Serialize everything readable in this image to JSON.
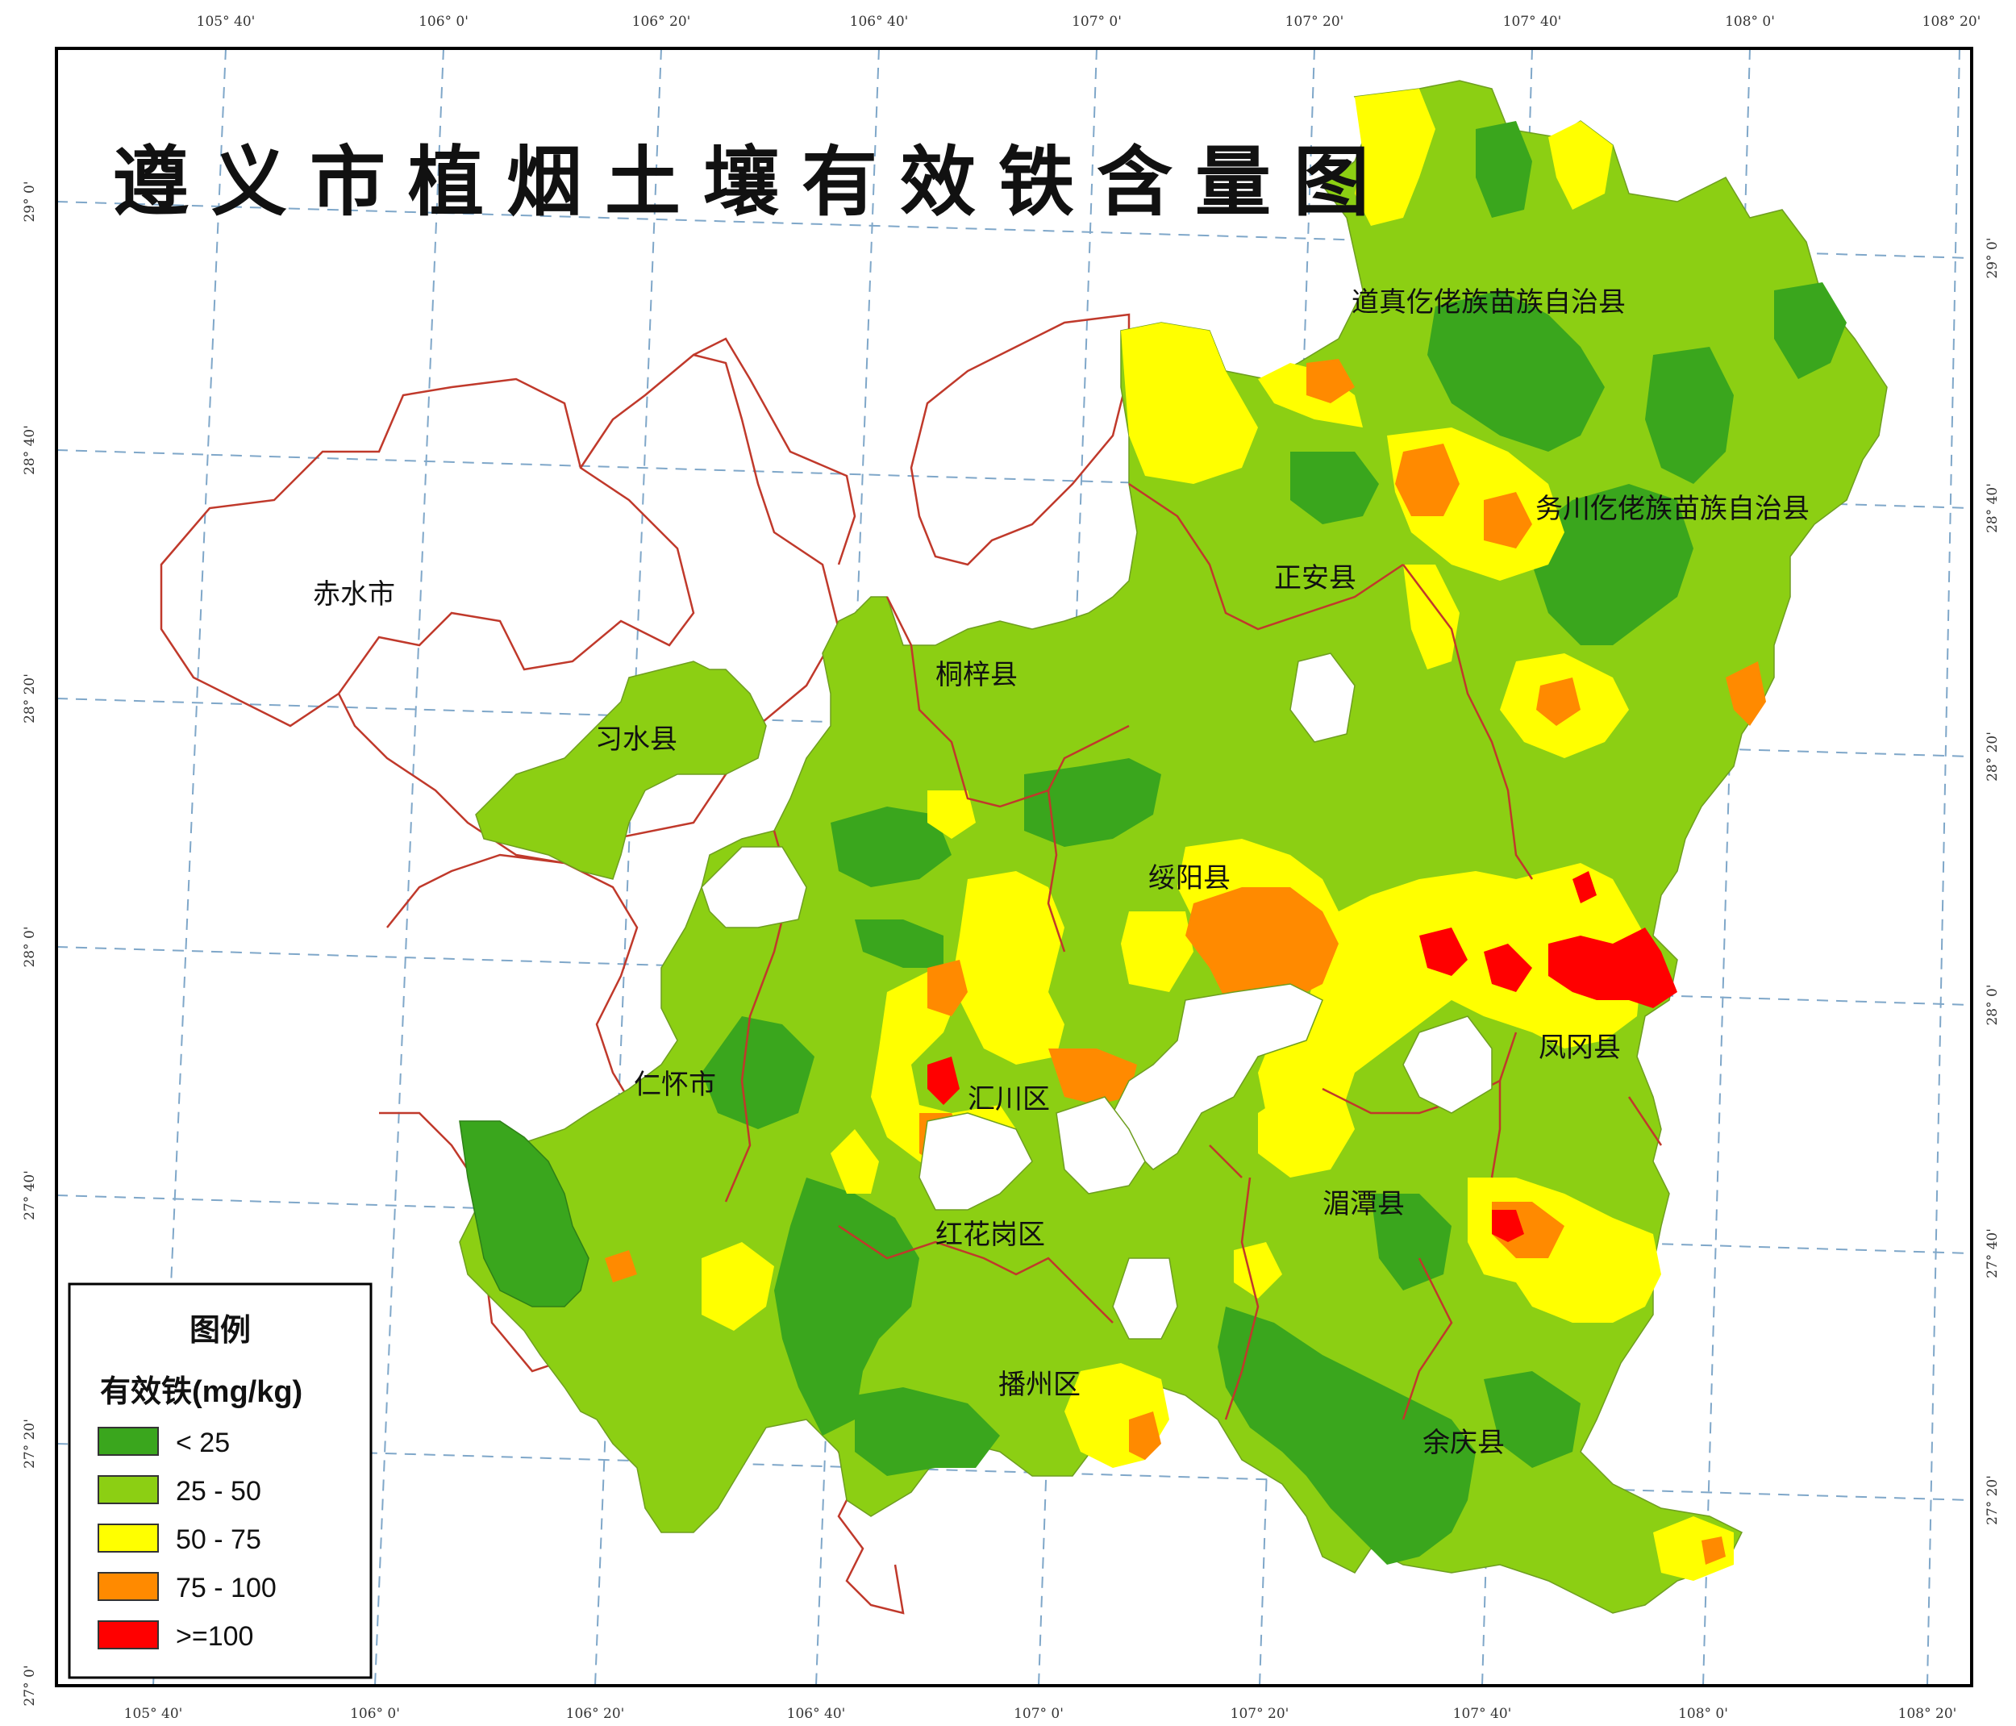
{
  "title": "遵义市植烟土壤有效铁含量图",
  "colors": {
    "c1": "#3aa61d",
    "c2": "#8ccf13",
    "c3": "#ffff00",
    "c4": "#ff8a00",
    "c5": "#ff0000",
    "boundary": "#c0392b",
    "grid": "#7fa7c9",
    "frame": "#000000"
  },
  "ticks": {
    "top": [
      "105° 40'",
      "106° 0'",
      "106° 20'",
      "106° 40'",
      "107° 0'",
      "107° 20'",
      "107° 40'",
      "108° 0'",
      "108° 20'"
    ],
    "bottom": [
      "105° 40'",
      "106° 0'",
      "106° 20'",
      "106° 40'",
      "107° 0'",
      "107° 20'",
      "107° 40'",
      "108° 0'",
      "108° 20'"
    ],
    "left": [
      "29° 0'",
      "28° 40'",
      "28° 20'",
      "28° 0'",
      "27° 40'",
      "27° 20'",
      "27° 0'"
    ],
    "right": [
      "29° 0'",
      "28° 40'",
      "28° 20'",
      "28° 0'",
      "27° 40'",
      "27° 20'"
    ]
  },
  "places": {
    "chishui": "赤水市",
    "xishui": "习水县",
    "tongzi": "桐梓县",
    "zhengan": "正安县",
    "daozhen": "道真仡佬族苗族自治县",
    "wuchuan": "务川仡佬族苗族自治县",
    "suiyang": "绥阳县",
    "renhuai": "仁怀市",
    "huichuan": "汇川区",
    "honghuagang": "红花岗区",
    "meitan": "湄潭县",
    "fenggang": "凤冈县",
    "bozhou": "播州区",
    "yuqing": "余庆县"
  },
  "legend": {
    "title": "图例",
    "subtitle": "有效铁(mg/kg)",
    "items": [
      {
        "label": "< 25",
        "color": "#3aa61d"
      },
      {
        "label": "25 - 50",
        "color": "#8ccf13"
      },
      {
        "label": "50 - 75",
        "color": "#ffff00"
      },
      {
        "label": "75 - 100",
        "color": "#ff8a00"
      },
      {
        "label": ">=100",
        "color": "#ff0000"
      }
    ]
  }
}
